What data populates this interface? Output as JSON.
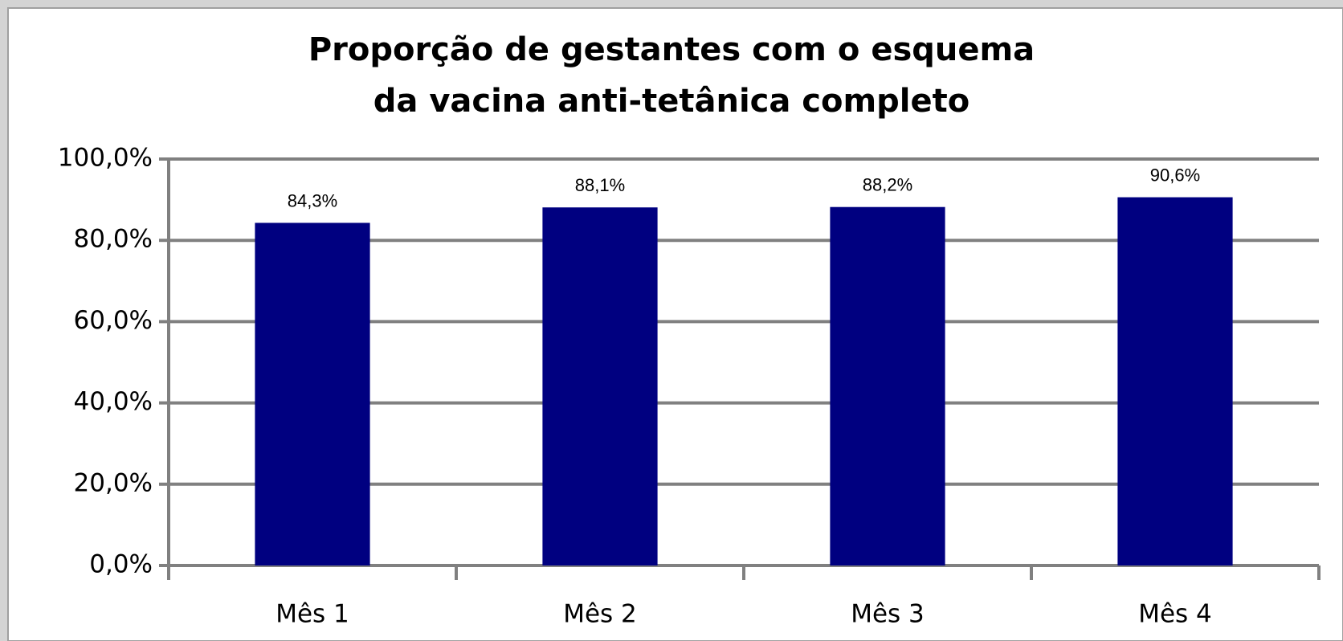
{
  "chart_data": {
    "type": "bar",
    "title": [
      "Proporção de gestantes com o esquema",
      "da vacina anti-tetânica completo"
    ],
    "categories": [
      "Mês 1",
      "Mês 2",
      "Mês 3",
      "Mês 4"
    ],
    "values": [
      84.3,
      88.1,
      88.2,
      90.6
    ],
    "value_labels": [
      "84,3%",
      "88,1%",
      "88,2%",
      "90,6%"
    ],
    "color": "#000080",
    "ylim": [
      0,
      100
    ],
    "yticks": [
      {
        "value": 0,
        "label": "0,0%"
      },
      {
        "value": 20,
        "label": "20,0%"
      },
      {
        "value": 40,
        "label": "40,0%"
      },
      {
        "value": 60,
        "label": "60,0%"
      },
      {
        "value": 80,
        "label": "80,0%"
      },
      {
        "value": 100,
        "label": "100,0%"
      }
    ],
    "grid": true
  }
}
